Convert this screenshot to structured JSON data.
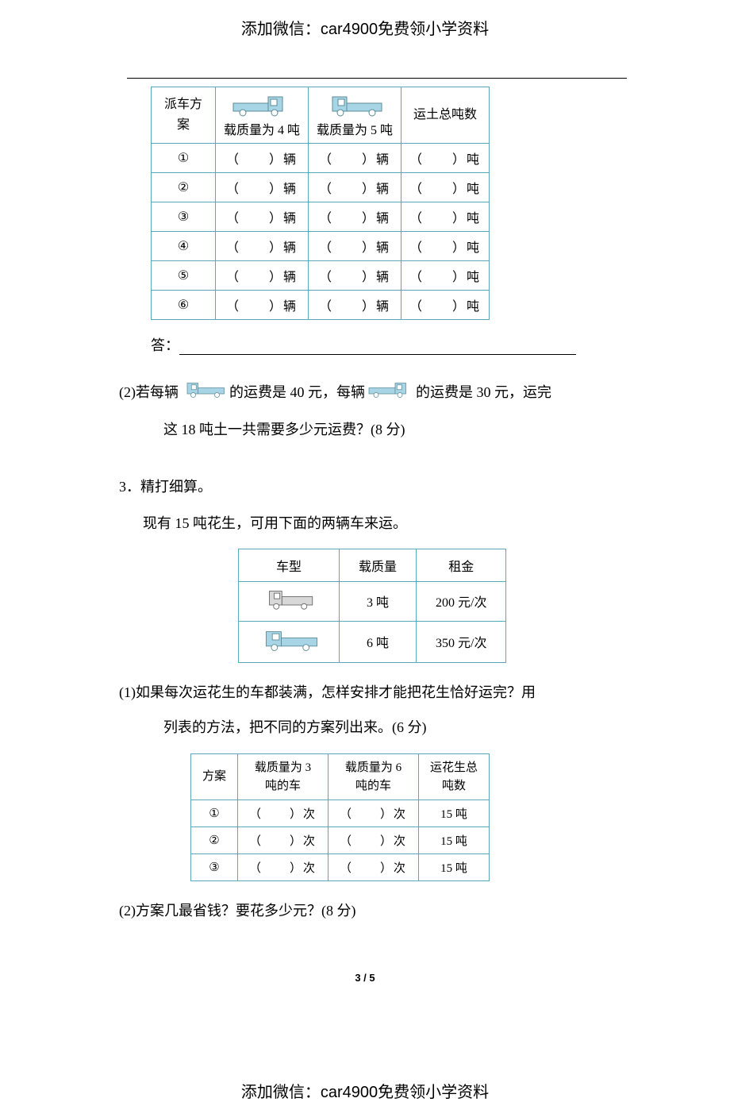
{
  "header_text": "添加微信：car4900免费领小学资料",
  "footer_text": "添加微信：car4900免费领小学资料",
  "page_number": "3 / 5",
  "colors": {
    "table_border": "#5ba8b8",
    "truck_blue": "#a8d5e5",
    "text": "#000000"
  },
  "table1": {
    "col1_label": "派车方案",
    "col2_caption": "载质量为 4 吨",
    "col3_caption": "载质量为 5 吨",
    "col4_label": "运土总吨数",
    "row_labels": [
      "①",
      "②",
      "③",
      "④",
      "⑤",
      "⑥"
    ],
    "cell_text": {
      "blank_truck": "（　　）辆",
      "blank_ton": "（　　）吨"
    }
  },
  "answer_label": "答：",
  "q2": {
    "prefix": "(2)若每辆",
    "mid1": "的运费是 40 元，每辆",
    "mid2": "的运费是 30 元，运完",
    "line2": "这 18 吨土一共需要多少元运费？(8 分)"
  },
  "q3": {
    "title": "3．精打细算。",
    "intro": "现有 15 吨花生，可用下面的两辆车来运。",
    "table": {
      "h1": "车型",
      "h2": "载质量",
      "h3": "租金",
      "r1_capacity": "3 吨",
      "r1_rent": "200 元/次",
      "r2_capacity": "6 吨",
      "r2_rent": "350 元/次"
    },
    "sub1_l1": "(1)如果每次运花生的车都装满，怎样安排才能把花生恰好运完？用",
    "sub1_l2": "列表的方法，把不同的方案列出来。(6 分)",
    "table3": {
      "h1": "方案",
      "h2_l1": "载质量为 3",
      "h2_l2": "吨的车",
      "h3_l1": "载质量为 6",
      "h3_l2": "吨的车",
      "h4_l1": "运花生总",
      "h4_l2": "吨数",
      "row_labels": [
        "①",
        "②",
        "③"
      ],
      "blank": "（　　）次",
      "total": "15 吨"
    },
    "sub2": "(2)方案几最省钱？要花多少元？(8 分)"
  }
}
